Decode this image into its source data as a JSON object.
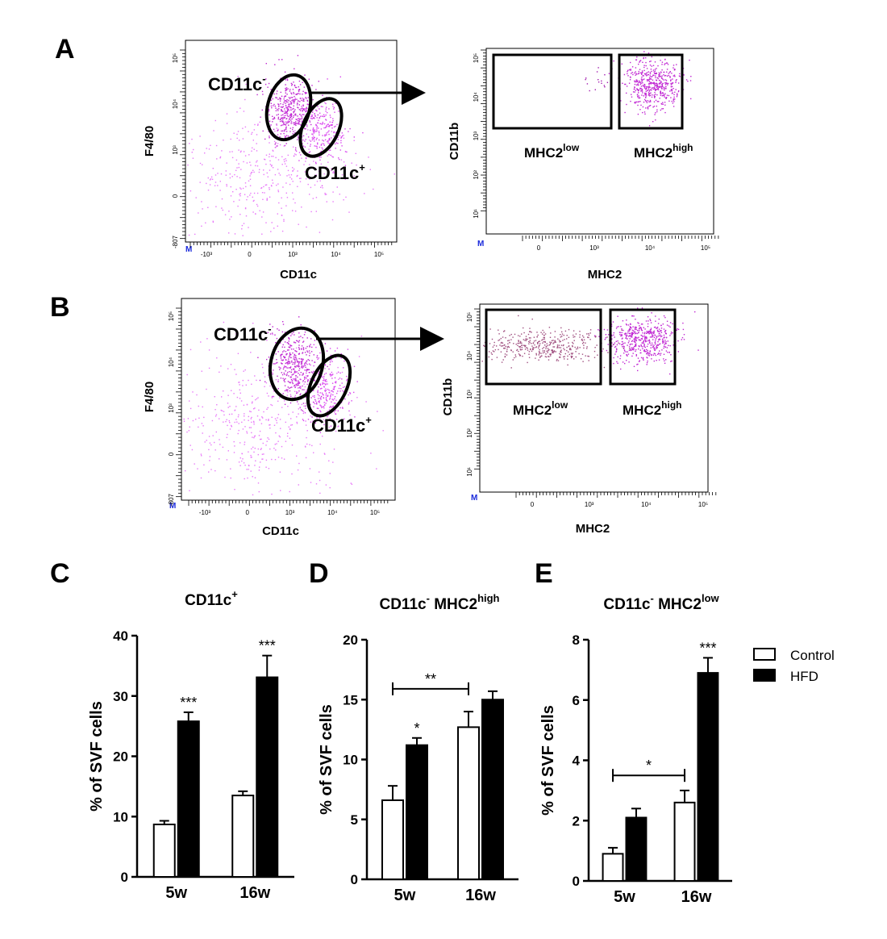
{
  "panels": {
    "A": "A",
    "B": "B",
    "C": "C",
    "D": "D",
    "E": "E"
  },
  "flow_plots": {
    "x_ticks_cd11c": [
      "-10³",
      "0",
      "10³",
      "10⁴",
      "10⁵"
    ],
    "y_ticks_f480": [
      "10⁵",
      "10⁴",
      "10³",
      "0",
      "-807"
    ],
    "y_ticks_cd11b": [
      "10⁵",
      "10⁴",
      "10³",
      "10²",
      "10¹"
    ],
    "x_ticks_mhc2": [
      "0",
      "10³",
      "10⁴",
      "10⁵"
    ],
    "m_mark": "M",
    "A_left": {
      "xlabel": "CD11c",
      "ylabel": "F4/80",
      "gate_neg": "CD11c",
      "gate_neg_sup": "-",
      "gate_pos": "CD11c",
      "gate_pos_sup": "+"
    },
    "A_right": {
      "xlabel": "MHC2",
      "ylabel": "CD11b",
      "gate_low": "MHC2",
      "gate_low_sup": "low",
      "gate_high": "MHC2",
      "gate_high_sup": "high"
    },
    "B_left": {
      "xlabel": "CD11c",
      "ylabel": "F4/80",
      "gate_neg": "CD11c",
      "gate_neg_sup": "-",
      "gate_pos": "CD11c",
      "gate_pos_sup": "+"
    },
    "B_right": {
      "xlabel": "MHC2",
      "ylabel": "CD11b",
      "gate_low": "MHC2",
      "gate_low_sup": "low",
      "gate_high": "MHC2",
      "gate_high_sup": "high"
    }
  },
  "legend": {
    "control": "Control",
    "hfd": "HFD",
    "control_color": "#ffffff",
    "hfd_color": "#000000"
  },
  "chart_data": [
    {
      "id": "C",
      "type": "bar",
      "title": "CD11c",
      "title_sup": "+",
      "title_sub": "",
      "ylabel": "% of SVF cells",
      "categories": [
        "5w",
        "16w"
      ],
      "ylim": [
        0,
        40
      ],
      "yticks": [
        0,
        10,
        20,
        30,
        40
      ],
      "series": [
        {
          "name": "Control",
          "values": [
            8.7,
            13.5
          ],
          "errors": [
            0.6,
            0.7
          ]
        },
        {
          "name": "HFD",
          "values": [
            25.8,
            33.1
          ],
          "errors": [
            1.5,
            3.6
          ]
        }
      ],
      "annotations": [
        {
          "text": "***",
          "category": 0,
          "series": 1
        },
        {
          "text": "***",
          "category": 1,
          "series": 1
        }
      ],
      "bracket": null
    },
    {
      "id": "D",
      "type": "bar",
      "title": "CD11c",
      "title_sup": "-",
      "title_sub": " MHC2",
      "title_sub_sup": "high",
      "ylabel": "% of SVF cells",
      "categories": [
        "5w",
        "16w"
      ],
      "ylim": [
        0,
        20
      ],
      "yticks": [
        0,
        5,
        10,
        15,
        20
      ],
      "series": [
        {
          "name": "Control",
          "values": [
            6.6,
            12.7
          ],
          "errors": [
            1.2,
            1.3
          ]
        },
        {
          "name": "HFD",
          "values": [
            11.2,
            15.0
          ],
          "errors": [
            0.6,
            0.7
          ]
        }
      ],
      "annotations": [
        {
          "text": "*",
          "category": 0,
          "series": 1
        }
      ],
      "bracket": {
        "text": "**",
        "y": 15.9
      }
    },
    {
      "id": "E",
      "type": "bar",
      "title": "CD11c",
      "title_sup": "-",
      "title_sub": " MHC2",
      "title_sub_sup": "low",
      "ylabel": "% of SVF cells",
      "categories": [
        "5w",
        "16w"
      ],
      "ylim": [
        0,
        8
      ],
      "yticks": [
        0,
        2,
        4,
        6,
        8
      ],
      "series": [
        {
          "name": "Control",
          "values": [
            0.9,
            2.6
          ],
          "errors": [
            0.2,
            0.4
          ]
        },
        {
          "name": "HFD",
          "values": [
            2.1,
            6.9
          ],
          "errors": [
            0.3,
            0.5
          ]
        }
      ],
      "annotations": [
        {
          "text": "***",
          "category": 1,
          "series": 1
        }
      ],
      "bracket": {
        "text": "*",
        "y": 3.5
      }
    }
  ]
}
